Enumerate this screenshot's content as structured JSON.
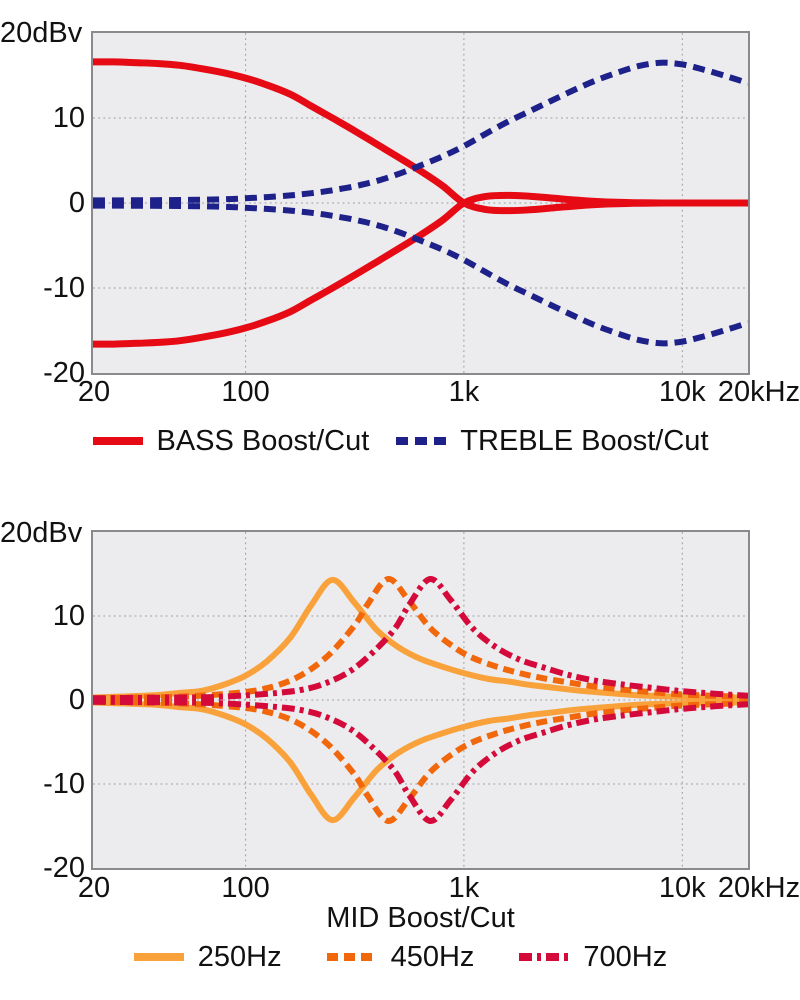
{
  "page": {
    "background": "#ffffff",
    "text_color": "#111111",
    "plot_background": "#ececee",
    "plot_border_color": "#8a8a8e",
    "grid_color": "#9a9aa0"
  },
  "chart_data": [
    {
      "type": "line",
      "name": "bass-treble-response",
      "x_axis": {
        "scale": "log",
        "min": 20,
        "max": 20000,
        "ticks": [
          {
            "f": 20,
            "label": "20"
          },
          {
            "f": 100,
            "label": "100"
          },
          {
            "f": 1000,
            "label": "1k"
          },
          {
            "f": 10000,
            "label": "10k"
          },
          {
            "f": 20000,
            "label": "20kHz"
          }
        ],
        "grid": [
          100,
          1000,
          10000
        ],
        "title": ""
      },
      "y_axis": {
        "min": -20,
        "max": 20,
        "unit_label": "20dBv",
        "ticks": [
          {
            "v": 10,
            "label": "10"
          },
          {
            "v": 0,
            "label": "0"
          },
          {
            "v": -10,
            "label": "-10"
          },
          {
            "v": -20,
            "label": "-20"
          }
        ],
        "grid": [
          10,
          0,
          -10
        ]
      },
      "series": [
        {
          "name": "BASS Boost/Cut",
          "slug": "bass",
          "color": "#e60a14",
          "style": "solid",
          "dash": [],
          "width": 7,
          "mirrored": true,
          "points": [
            [
              20,
              16.6
            ],
            [
              25,
              16.6
            ],
            [
              32,
              16.5
            ],
            [
              40,
              16.4
            ],
            [
              50,
              16.2
            ],
            [
              63,
              15.8
            ],
            [
              80,
              15.3
            ],
            [
              100,
              14.7
            ],
            [
              125,
              13.9
            ],
            [
              160,
              12.8
            ],
            [
              200,
              11.4
            ],
            [
              250,
              10.0
            ],
            [
              320,
              8.4
            ],
            [
              400,
              6.9
            ],
            [
              500,
              5.4
            ],
            [
              630,
              3.8
            ],
            [
              800,
              2.0
            ],
            [
              1000,
              0.0
            ],
            [
              1250,
              -0.75
            ],
            [
              1600,
              -0.9
            ],
            [
              2000,
              -0.8
            ],
            [
              2600,
              -0.55
            ],
            [
              3400,
              -0.3
            ],
            [
              4500,
              -0.12
            ],
            [
              6000,
              -0.04
            ],
            [
              8000,
              0
            ],
            [
              12000,
              0
            ],
            [
              16000,
              0
            ],
            [
              20000,
              0
            ]
          ]
        },
        {
          "name": "TREBLE Boost/Cut",
          "slug": "treble",
          "color": "#1e2189",
          "style": "dashed",
          "dash": [
            12,
            7
          ],
          "width": 6,
          "mirrored": true,
          "points": [
            [
              20,
              0.3
            ],
            [
              50,
              0.35
            ],
            [
              80,
              0.45
            ],
            [
              100,
              0.55
            ],
            [
              125,
              0.7
            ],
            [
              160,
              0.9
            ],
            [
              200,
              1.15
            ],
            [
              250,
              1.5
            ],
            [
              320,
              2.0
            ],
            [
              400,
              2.6
            ],
            [
              500,
              3.4
            ],
            [
              630,
              4.4
            ],
            [
              800,
              5.5
            ],
            [
              1000,
              6.7
            ],
            [
              1250,
              8.1
            ],
            [
              1600,
              9.6
            ],
            [
              2000,
              10.8
            ],
            [
              2500,
              12.0
            ],
            [
              3200,
              13.3
            ],
            [
              4000,
              14.4
            ],
            [
              5000,
              15.3
            ],
            [
              6300,
              16.1
            ],
            [
              8000,
              16.5
            ],
            [
              10000,
              16.3
            ],
            [
              12500,
              15.7
            ],
            [
              16000,
              14.9
            ],
            [
              20000,
              14.1
            ]
          ]
        }
      ]
    },
    {
      "type": "line",
      "name": "mid-response",
      "x_axis": {
        "scale": "log",
        "min": 20,
        "max": 20000,
        "ticks": [
          {
            "f": 20,
            "label": "20"
          },
          {
            "f": 100,
            "label": "100"
          },
          {
            "f": 1000,
            "label": "1k"
          },
          {
            "f": 10000,
            "label": "10k"
          },
          {
            "f": 20000,
            "label": "20kHz"
          }
        ],
        "grid": [
          100,
          1000,
          10000
        ],
        "title": "MID Boost/Cut"
      },
      "y_axis": {
        "min": -20,
        "max": 20,
        "unit_label": "20dBv",
        "ticks": [
          {
            "v": 10,
            "label": "10"
          },
          {
            "v": 0,
            "label": "0"
          },
          {
            "v": -10,
            "label": "-10"
          },
          {
            "v": -20,
            "label": "-20"
          }
        ],
        "grid": [
          10,
          0,
          -10
        ]
      },
      "series": [
        {
          "name": "250Hz",
          "slug": "mid-250hz",
          "color": "#f9a23b",
          "style": "solid",
          "dash": [],
          "width": 6,
          "mirrored": true,
          "points": [
            [
              20,
              0.3
            ],
            [
              30,
              0.45
            ],
            [
              40,
              0.6
            ],
            [
              50,
              0.85
            ],
            [
              63,
              1.1
            ],
            [
              80,
              1.85
            ],
            [
              100,
              2.9
            ],
            [
              125,
              4.6
            ],
            [
              160,
              7.4
            ],
            [
              200,
              11.3
            ],
            [
              250,
              14.3
            ],
            [
              315,
              11.6
            ],
            [
              400,
              8.3
            ],
            [
              500,
              6.3
            ],
            [
              630,
              4.9
            ],
            [
              800,
              3.95
            ],
            [
              1000,
              3.2
            ],
            [
              1300,
              2.5
            ],
            [
              1600,
              2.2
            ],
            [
              2000,
              1.8
            ],
            [
              2600,
              1.45
            ],
            [
              3400,
              1.1
            ],
            [
              4500,
              0.85
            ],
            [
              6000,
              0.6
            ],
            [
              8000,
              0.45
            ],
            [
              11000,
              0.35
            ],
            [
              15000,
              0.3
            ],
            [
              20000,
              0.3
            ]
          ]
        },
        {
          "name": "450Hz",
          "slug": "mid-450hz",
          "color": "#f1680c",
          "style": "dashed",
          "dash": [
            11,
            6
          ],
          "width": 6,
          "mirrored": true,
          "points": [
            [
              20,
              0.2
            ],
            [
              32,
              0.3
            ],
            [
              50,
              0.4
            ],
            [
              70,
              0.6
            ],
            [
              100,
              0.95
            ],
            [
              125,
              1.4
            ],
            [
              160,
              2.3
            ],
            [
              200,
              3.7
            ],
            [
              250,
              5.8
            ],
            [
              320,
              9.1
            ],
            [
              360,
              11.3
            ],
            [
              450,
              14.4
            ],
            [
              560,
              11.8
            ],
            [
              700,
              8.6
            ],
            [
              900,
              6.3
            ],
            [
              1100,
              5.0
            ],
            [
              1400,
              4.0
            ],
            [
              1800,
              3.2
            ],
            [
              2300,
              2.6
            ],
            [
              3000,
              2.1
            ],
            [
              4000,
              1.6
            ],
            [
              5500,
              1.2
            ],
            [
              7500,
              0.9
            ],
            [
              10000,
              0.65
            ],
            [
              14000,
              0.5
            ],
            [
              20000,
              0.35
            ]
          ]
        },
        {
          "name": "700Hz",
          "slug": "mid-700hz",
          "color": "#d40b3a",
          "style": "dashdot",
          "dash": [
            13,
            5,
            4,
            5
          ],
          "width": 6,
          "mirrored": true,
          "points": [
            [
              20,
              0.2
            ],
            [
              32,
              0.25
            ],
            [
              50,
              0.3
            ],
            [
              70,
              0.35
            ],
            [
              100,
              0.55
            ],
            [
              140,
              0.85
            ],
            [
              180,
              1.2
            ],
            [
              230,
              1.95
            ],
            [
              300,
              3.4
            ],
            [
              380,
              5.6
            ],
            [
              480,
              8.4
            ],
            [
              560,
              11.3
            ],
            [
              700,
              14.4
            ],
            [
              870,
              11.9
            ],
            [
              1100,
              8.5
            ],
            [
              1400,
              6.3
            ],
            [
              1800,
              4.8
            ],
            [
              2300,
              3.9
            ],
            [
              3000,
              3.0
            ],
            [
              4000,
              2.3
            ],
            [
              5500,
              1.8
            ],
            [
              7500,
              1.4
            ],
            [
              10000,
              1.05
            ],
            [
              14000,
              0.75
            ],
            [
              20000,
              0.5
            ]
          ]
        }
      ]
    }
  ]
}
